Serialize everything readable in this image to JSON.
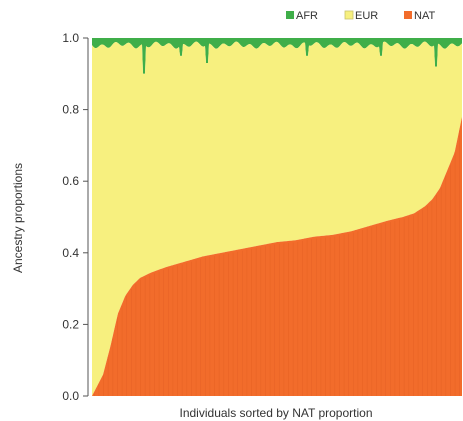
{
  "chart_data": {
    "type": "area",
    "title": "",
    "xlabel": "Individuals sorted by NAT proportion",
    "ylabel": "Ancestry proportions",
    "ylim": [
      0,
      1.0
    ],
    "yticks": [
      "0.0",
      "0.2",
      "0.4",
      "0.6",
      "0.8",
      "1.0"
    ],
    "stacking": "stacked-100",
    "x_order": "sorted by NAT ascending",
    "grid": false,
    "legend_position": "top-right",
    "series": [
      {
        "name": "AFR",
        "color": "#3fae49",
        "mean_approx": 0.02
      },
      {
        "name": "EUR",
        "color": "#f7f07f"
      },
      {
        "name": "NAT",
        "color": "#f26c2b"
      }
    ],
    "nat_curve": {
      "x_fraction": [
        0.0,
        0.01,
        0.03,
        0.05,
        0.07,
        0.09,
        0.11,
        0.13,
        0.16,
        0.2,
        0.25,
        0.3,
        0.35,
        0.4,
        0.45,
        0.5,
        0.55,
        0.6,
        0.65,
        0.7,
        0.75,
        0.8,
        0.84,
        0.87,
        0.9,
        0.92,
        0.94,
        0.96,
        0.98,
        1.0
      ],
      "nat": [
        0.0,
        0.02,
        0.06,
        0.14,
        0.23,
        0.28,
        0.31,
        0.33,
        0.345,
        0.36,
        0.375,
        0.39,
        0.4,
        0.41,
        0.42,
        0.43,
        0.435,
        0.445,
        0.45,
        0.46,
        0.475,
        0.49,
        0.5,
        0.51,
        0.53,
        0.55,
        0.58,
        0.63,
        0.68,
        0.78
      ]
    },
    "afr_notable_dips": [
      {
        "x_fraction": 0.14,
        "afr": 0.1
      },
      {
        "x_fraction": 0.24,
        "afr": 0.05
      },
      {
        "x_fraction": 0.31,
        "afr": 0.07
      },
      {
        "x_fraction": 0.58,
        "afr": 0.05
      },
      {
        "x_fraction": 0.78,
        "afr": 0.05
      },
      {
        "x_fraction": 0.93,
        "afr": 0.08
      }
    ]
  }
}
